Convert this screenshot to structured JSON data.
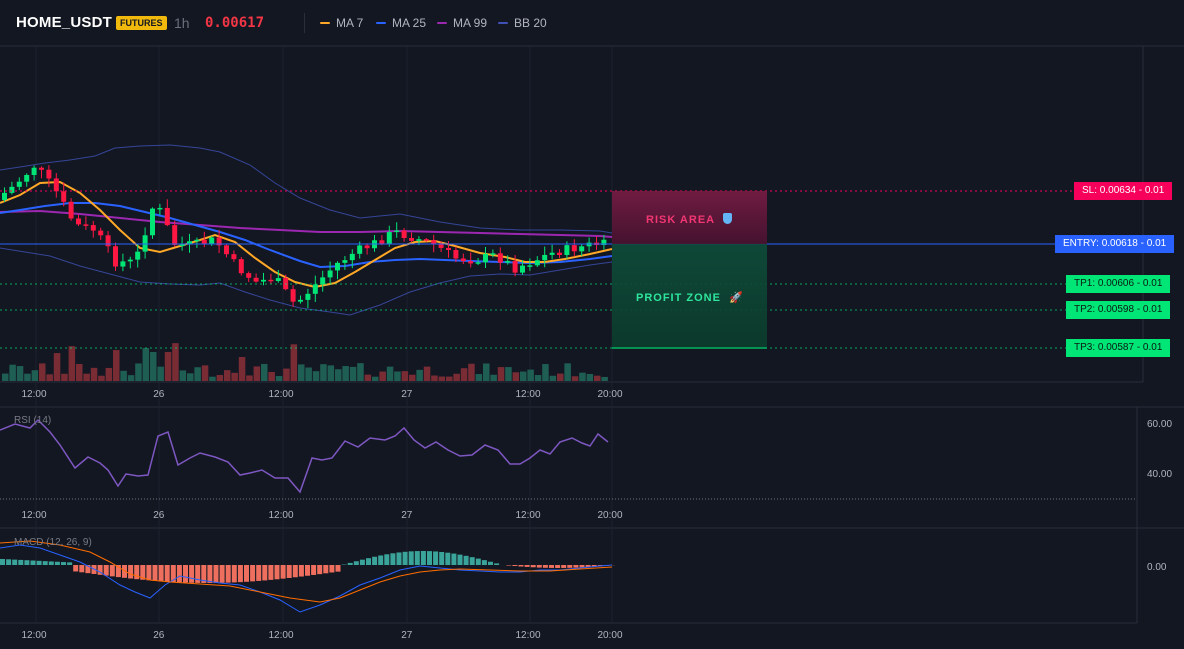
{
  "header": {
    "symbol": "HOME_USDT",
    "badge": "FUTURES",
    "timeframe": "1h",
    "price": "0.00617",
    "legend": [
      {
        "label": "MA 7",
        "color": "#ffa726"
      },
      {
        "label": "MA 25",
        "color": "#2962ff"
      },
      {
        "label": "MA 99",
        "color": "#9c27b0"
      },
      {
        "label": "BB 20",
        "color": "#3f51b5"
      }
    ]
  },
  "levels": {
    "sl": {
      "label": "SL: 0.00634 - 0.01",
      "value": 0.00634,
      "color": "#f7005b"
    },
    "entry": {
      "label": "ENTRY: 0.00618 - 0.01",
      "value": 0.00618,
      "color": "#2962ff"
    },
    "tp1": {
      "label": "TP1: 0.00606 - 0.01",
      "value": 0.00606,
      "color": "#00e676"
    },
    "tp2": {
      "label": "TP2: 0.00598 - 0.01",
      "value": 0.00598,
      "color": "#00e676"
    },
    "tp3": {
      "label": "TP3: 0.00587 - 0.01",
      "value": 0.00587,
      "color": "#00e676"
    }
  },
  "zones": {
    "risk": {
      "label": "RISK AREA",
      "icon": "shield-icon"
    },
    "profit": {
      "label": "PROFIT ZONE",
      "icon": "rocket-icon"
    }
  },
  "time_axis": [
    "12:00",
    "26",
    "12:00",
    "27",
    "12:00",
    "20:00"
  ],
  "rsi": {
    "title": "RSI (14)",
    "axis": [
      "60.00",
      "40.00"
    ]
  },
  "macd": {
    "title": "MACD (12, 26, 9)",
    "axis": [
      "0.00"
    ]
  },
  "colors": {
    "bull": "#26a69a",
    "bear": "#ef5350",
    "bull_bright": "#00e676",
    "bear_bright": "#ff1744",
    "bg": "#131722",
    "grid": "#1e222d"
  }
}
